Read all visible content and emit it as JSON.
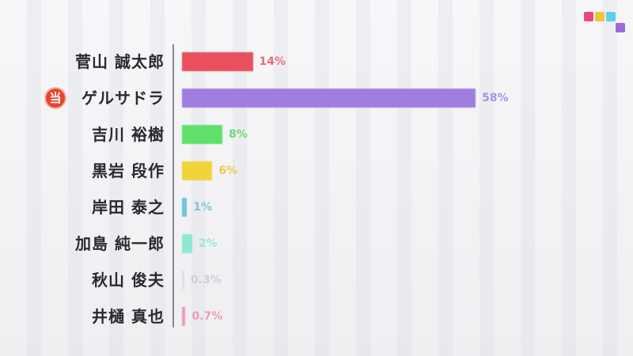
{
  "chart_data": {
    "type": "bar",
    "orientation": "horizontal",
    "categories": [
      "菅山 誠太郎",
      "ゲルサドラ",
      "吉川 裕樹",
      "黒岩 段作",
      "岸田 泰之",
      "加島 純一郎",
      "秋山 俊夫",
      "井樋 真也"
    ],
    "values": [
      14,
      58,
      8,
      6,
      1,
      2,
      0.3,
      0.7
    ],
    "value_labels": [
      "14%",
      "58%",
      "8%",
      "6%",
      "1%",
      "2%",
      "0.3%",
      "0.7%"
    ],
    "colors": [
      "#e8505e",
      "#9f7ee0",
      "#5fe06a",
      "#f2d43a",
      "#6cc6dc",
      "#8ee8d4",
      "#d8d8dc",
      "#f09ab8"
    ],
    "label_colors": [
      "#e8707c",
      "#a990e0",
      "#6fd67a",
      "#e8cc4a",
      "#7cc6d8",
      "#9ce6d6",
      "#d0d0d4",
      "#ee9ab8"
    ],
    "winner_index": 1,
    "winner_badge": "当",
    "xlim": [
      0,
      58
    ],
    "grid": false
  },
  "logo": {
    "colors": [
      "#e84a7e",
      "#f2c43a",
      "#5ad1e6",
      "#9b6ad8"
    ]
  }
}
